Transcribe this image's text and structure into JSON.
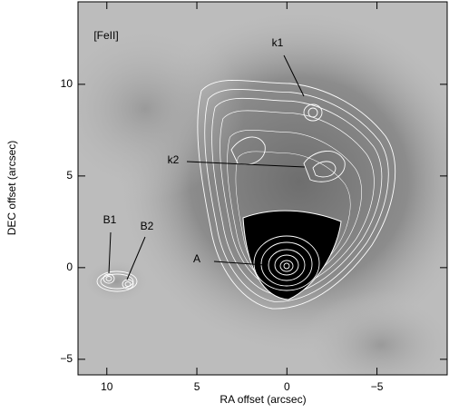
{
  "chart_data": {
    "type": "image",
    "xlabel": "RA offset (arcsec)",
    "ylabel": "DEC offset (arcsec)",
    "xlim": [
      11.6,
      -8.9
    ],
    "ylim": [
      -5.85,
      14.5
    ],
    "xticks": [
      10,
      5,
      0,
      {
        "value": -5,
        "label": "−5"
      }
    ],
    "yticks": [
      {
        "value": -5,
        "label": "−5"
      },
      0,
      5,
      10
    ],
    "annotations": [
      "[FeII]",
      "k1",
      "k2",
      "A",
      "B1",
      "B2"
    ]
  }
}
